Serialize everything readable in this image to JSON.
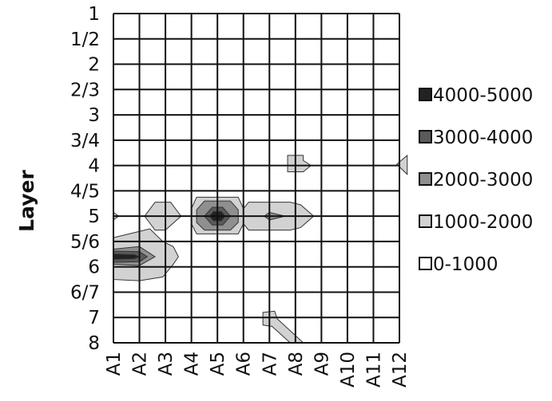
{
  "chart_data": {
    "type": "heatmap",
    "title": "",
    "xlabel": "",
    "ylabel": "Layer",
    "x": [
      "A1",
      "A2",
      "A3",
      "A4",
      "A5",
      "A6",
      "A7",
      "A8",
      "A9",
      "A10",
      "A11",
      "A12"
    ],
    "y": [
      "1",
      "1/2",
      "2",
      "2/3",
      "3",
      "3/4",
      "4",
      "4/5",
      "5",
      "5/6",
      "6",
      "6/7",
      "7",
      "8"
    ],
    "grid": true,
    "legend_position": "right",
    "legend": [
      {
        "label": "4000-5000",
        "color": "#222222"
      },
      {
        "label": "3000-4000",
        "color": "#5a5a5a"
      },
      {
        "label": "2000-3000",
        "color": "#8f8f8f"
      },
      {
        "label": "1000-2000",
        "color": "#d2d2d2"
      },
      {
        "label": "0-1000",
        "color": "#ffffff"
      }
    ],
    "regions": [
      {
        "range": "1000-2000",
        "points": [
          [
            "A1",
            8.85
          ],
          [
            "A1.2",
            9
          ],
          [
            "A1",
            9.15
          ]
        ]
      },
      {
        "range": "1000-2000",
        "points": [
          [
            "A2.2",
            9
          ],
          [
            "A2.6",
            8.45
          ],
          [
            "A3.2",
            8.45
          ],
          [
            "A3.6",
            9
          ],
          [
            "A3",
            9.55
          ],
          [
            "A2.6",
            9.55
          ]
        ]
      },
      {
        "range": "1000-2000",
        "points": [
          [
            "A4",
            8.7
          ],
          [
            "A4.2",
            8.25
          ],
          [
            "A5.8",
            8.25
          ],
          [
            "A6",
            8.7
          ],
          [
            "A6",
            9.3
          ],
          [
            "A5.8",
            9.7
          ],
          [
            "A4.2",
            9.7
          ],
          [
            "A4",
            9.3
          ]
        ]
      },
      {
        "range": "1000-2000",
        "points": [
          [
            "A6",
            8.7
          ],
          [
            "A6.2",
            8.45
          ],
          [
            "A7.8",
            8.45
          ],
          [
            "A8.2",
            8.55
          ],
          [
            "A8.7",
            9
          ],
          [
            "A8.2",
            9.45
          ],
          [
            "A7.8",
            9.55
          ],
          [
            "A6.2",
            9.55
          ],
          [
            "A6",
            9.3
          ]
        ]
      },
      {
        "range": "1000-2000",
        "points": [
          [
            "A1",
            9.85
          ],
          [
            "A2",
            9.6
          ],
          [
            "A2.4",
            9.5
          ],
          [
            "A2.9",
            10
          ],
          [
            "A3.3",
            10.2
          ],
          [
            "A3.5",
            10.6
          ],
          [
            "A3.3",
            10.9
          ],
          [
            "A2.9",
            11.4
          ],
          [
            "A2",
            11.55
          ],
          [
            "A1",
            11.5
          ]
        ]
      },
      {
        "range": "1000-2000",
        "points": [
          [
            "A7.7",
            6.6
          ],
          [
            "A8.3",
            6.6
          ],
          [
            "A8.3",
            6.8
          ],
          [
            "A8.6",
            7
          ],
          [
            "A8.3",
            7.25
          ],
          [
            "A7.7",
            7.25
          ]
        ]
      },
      {
        "range": "1000-2000",
        "points": [
          [
            "A11.9",
            6.95
          ],
          [
            "A12.3",
            6.6
          ],
          [
            "A12.3",
            7.35
          ]
        ]
      },
      {
        "range": "1000-2000",
        "points": [
          [
            "A6.75",
            12.8
          ],
          [
            "A7.2",
            12.75
          ],
          [
            "A7.3",
            13.05
          ],
          [
            "A8.2",
            13.9
          ],
          [
            "A8.3",
            14
          ],
          [
            "A7.8",
            14
          ],
          [
            "A7.1",
            13.35
          ],
          [
            "A6.75",
            13.3
          ]
        ]
      },
      {
        "range": "2000-3000",
        "points": [
          [
            "A4.5",
            8.4
          ],
          [
            "A5.5",
            8.4
          ],
          [
            "A5.8",
            8.75
          ],
          [
            "A5.8",
            9.25
          ],
          [
            "A5.5",
            9.55
          ],
          [
            "A4.5",
            9.55
          ],
          [
            "A4.2",
            9.25
          ],
          [
            "A4.2",
            8.75
          ]
        ]
      },
      {
        "range": "2000-3000",
        "points": [
          [
            "A6.8",
            9
          ],
          [
            "A7",
            8.85
          ],
          [
            "A7.6",
            9
          ],
          [
            "A7",
            9.15
          ]
        ]
      },
      {
        "range": "2000-3000",
        "points": [
          [
            "A1",
            10.3
          ],
          [
            "A2",
            10.2
          ],
          [
            "A2.6",
            10.6
          ],
          [
            "A2",
            10.95
          ],
          [
            "A1",
            10.9
          ]
        ]
      },
      {
        "range": "3000-4000",
        "points": [
          [
            "A4.8",
            8.65
          ],
          [
            "A5.2",
            8.65
          ],
          [
            "A5.5",
            9
          ],
          [
            "A5.2",
            9.35
          ],
          [
            "A4.8",
            9.35
          ],
          [
            "A4.5",
            9
          ]
        ]
      },
      {
        "range": "3000-4000",
        "points": [
          [
            "A1",
            10.38
          ],
          [
            "A2",
            10.4
          ],
          [
            "A2.3",
            10.6
          ],
          [
            "A2",
            10.8
          ],
          [
            "A1",
            10.82
          ]
        ]
      },
      {
        "range": "4000-5000",
        "points": [
          [
            "A4.85",
            8.82
          ],
          [
            "A5.15",
            8.82
          ],
          [
            "A5.3",
            9
          ],
          [
            "A5.15",
            9.18
          ],
          [
            "A4.85",
            9.18
          ],
          [
            "A4.7",
            9
          ]
        ]
      },
      {
        "range": "4000-5000",
        "points": [
          [
            "A1",
            10.5
          ],
          [
            "A1.8",
            10.52
          ],
          [
            "A2",
            10.6
          ],
          [
            "A1.8",
            10.68
          ],
          [
            "A1",
            10.7
          ]
        ]
      }
    ]
  }
}
